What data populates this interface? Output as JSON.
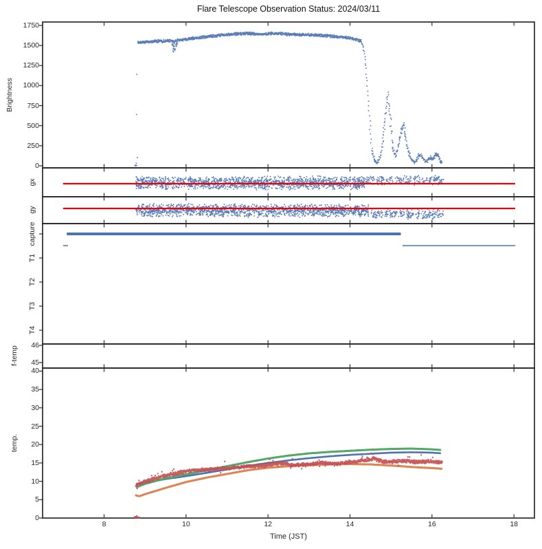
{
  "title": "Flare Telescope Observation Status: 2024/03/11",
  "x_axis": {
    "label": "Time (JST)",
    "ticks": [
      8,
      10,
      12,
      14,
      16,
      18
    ],
    "range": [
      6.5,
      18.5
    ]
  },
  "colors": {
    "scatter_blue": "#4c72b0",
    "reference_red": "#e8000b",
    "temp_red": "#c44e52",
    "temp_green": "#55a868",
    "temp_orange": "#dd8452",
    "frame": "#1c1c1c",
    "background": "#ffffff"
  },
  "chart_data": [
    {
      "id": "brightness",
      "type": "scatter",
      "ylabel": "Brightness",
      "yticks": [
        0,
        250,
        500,
        750,
        1000,
        1250,
        1500,
        1750
      ],
      "ylim": [
        -26,
        1793
      ],
      "series": [
        {
          "name": "brightness",
          "color": "#4c72b0",
          "t_range": [
            8.76,
            16.25
          ],
          "startup_points": [
            [
              8.76,
              2
            ],
            [
              8.77,
              4
            ],
            [
              8.78,
              8
            ],
            [
              8.78,
              1
            ],
            [
              8.79,
              3
            ],
            [
              8.79,
              32
            ],
            [
              8.8,
              102
            ],
            [
              8.8,
              640
            ],
            [
              8.81,
              1140
            ],
            [
              8.81,
              1530
            ]
          ],
          "plateau_keypoints": [
            [
              8.82,
              1537
            ],
            [
              9.0,
              1546
            ],
            [
              9.2,
              1551
            ],
            [
              9.4,
              1556
            ],
            [
              9.6,
              1561
            ],
            [
              9.68,
              1558
            ],
            [
              9.71,
              1535
            ],
            [
              9.74,
              1552
            ],
            [
              9.8,
              1564
            ],
            [
              10.0,
              1578
            ],
            [
              10.2,
              1592
            ],
            [
              10.4,
              1604
            ],
            [
              10.6,
              1615
            ],
            [
              10.8,
              1625
            ],
            [
              11.0,
              1634
            ],
            [
              11.2,
              1642
            ],
            [
              11.35,
              1648
            ],
            [
              11.5,
              1651
            ],
            [
              11.65,
              1646
            ],
            [
              11.8,
              1642
            ],
            [
              12.0,
              1646
            ],
            [
              12.15,
              1650
            ],
            [
              12.3,
              1648
            ],
            [
              12.45,
              1640
            ],
            [
              12.6,
              1638
            ],
            [
              12.8,
              1634
            ],
            [
              13.0,
              1632
            ],
            [
              13.2,
              1628
            ],
            [
              13.4,
              1623
            ],
            [
              13.6,
              1614
            ],
            [
              13.8,
              1605
            ],
            [
              13.95,
              1596
            ],
            [
              14.1,
              1582
            ],
            [
              14.2,
              1568
            ],
            [
              14.27,
              1552
            ]
          ],
          "dip_points": [
            [
              9.66,
              1520
            ],
            [
              9.68,
              1495
            ],
            [
              9.7,
              1462
            ],
            [
              9.71,
              1428
            ],
            [
              9.72,
              1452
            ],
            [
              9.73,
              1487
            ],
            [
              9.75,
              1508
            ],
            [
              9.77,
              1522
            ]
          ],
          "fall_keypoints": [
            [
              14.28,
              1540
            ],
            [
              14.31,
              1515
            ],
            [
              14.33,
              1465
            ],
            [
              14.35,
              1395
            ],
            [
              14.37,
              1310
            ],
            [
              14.39,
              1210
            ],
            [
              14.41,
              1090
            ],
            [
              14.43,
              950
            ],
            [
              14.45,
              800
            ],
            [
              14.47,
              640
            ],
            [
              14.49,
              480
            ],
            [
              14.51,
              330
            ],
            [
              14.53,
              215
            ],
            [
              14.56,
              130
            ],
            [
              14.6,
              75
            ]
          ],
          "tail_keypoints": [
            [
              14.6,
              70
            ],
            [
              14.65,
              40
            ],
            [
              14.7,
              55
            ],
            [
              14.75,
              130
            ],
            [
              14.8,
              330
            ],
            [
              14.85,
              560
            ],
            [
              14.9,
              780
            ],
            [
              14.93,
              880
            ],
            [
              14.96,
              740
            ],
            [
              15.0,
              500
            ],
            [
              15.03,
              320
            ],
            [
              15.06,
              200
            ],
            [
              15.1,
              130
            ],
            [
              15.15,
              170
            ],
            [
              15.2,
              300
            ],
            [
              15.26,
              440
            ],
            [
              15.3,
              505
            ],
            [
              15.34,
              415
            ],
            [
              15.38,
              290
            ],
            [
              15.42,
              190
            ],
            [
              15.46,
              120
            ],
            [
              15.5,
              75
            ],
            [
              15.56,
              48
            ],
            [
              15.62,
              70
            ],
            [
              15.68,
              130
            ],
            [
              15.72,
              150
            ],
            [
              15.78,
              85
            ],
            [
              15.84,
              45
            ],
            [
              15.9,
              65
            ],
            [
              15.96,
              105
            ],
            [
              16.0,
              75
            ],
            [
              16.05,
              95
            ],
            [
              16.1,
              165
            ],
            [
              16.15,
              125
            ],
            [
              16.2,
              65
            ],
            [
              16.25,
              35
            ]
          ]
        }
      ]
    },
    {
      "id": "gx",
      "type": "scatter",
      "label": "gx",
      "series": [
        {
          "name": "gx-scatter",
          "color": "#4c72b0",
          "dense_range": [
            8.77,
            14.35
          ],
          "sparse_segments": [
            [
              14.38,
              14.6
            ],
            [
              14.65,
              15.05
            ],
            [
              15.1,
              15.5
            ],
            [
              15.55,
              16.28
            ]
          ]
        },
        {
          "name": "gx-ref-line",
          "type": "hline",
          "color": "#e8000b",
          "span": [
            7.0,
            18.03
          ]
        }
      ]
    },
    {
      "id": "gy",
      "type": "scatter",
      "label": "gy",
      "series": [
        {
          "name": "gy-scatter",
          "color": "#4c72b0",
          "dense_range": [
            8.77,
            14.45
          ],
          "sparse_segments": [
            [
              14.5,
              14.8
            ],
            [
              14.85,
              15.55
            ],
            [
              15.6,
              16.28
            ]
          ]
        },
        {
          "name": "gy-ref-line",
          "type": "hline",
          "color": "#e8000b",
          "span": [
            7.0,
            18.03
          ]
        }
      ]
    },
    {
      "id": "capture",
      "type": "timeline",
      "categories": [
        "capture",
        "T1",
        "T2",
        "T3",
        "T4"
      ],
      "series": [
        {
          "name": "capture-on",
          "color": "#4c72b0",
          "style": "thick",
          "spans": [
            [
              7.09,
              15.24
            ]
          ]
        },
        {
          "name": "capture-off",
          "color": "#4c72b0",
          "style": "thin",
          "spans": [
            [
              7.0,
              7.12
            ],
            [
              15.28,
              18.03
            ]
          ]
        }
      ]
    },
    {
      "id": "f-temp",
      "type": "empty",
      "ylabel": "f-temp",
      "yticks": [
        45,
        46
      ],
      "series": []
    },
    {
      "id": "temp",
      "type": "line+scatter",
      "ylabel": "temp.",
      "yticks": [
        0,
        5,
        10,
        15,
        20,
        25,
        30,
        35,
        40
      ],
      "ylim": [
        -0.4,
        40.8
      ],
      "series": [
        {
          "name": "temp-sensor-red",
          "type": "scatter",
          "color": "#c44e52",
          "keypoints": [
            [
              8.8,
              9.0
            ],
            [
              9.0,
              10.0
            ],
            [
              9.5,
              11.6
            ],
            [
              10.0,
              12.7
            ],
            [
              10.5,
              13.2
            ],
            [
              11.0,
              13.6
            ],
            [
              11.5,
              14.0
            ],
            [
              12.0,
              14.4
            ],
            [
              12.3,
              15.0
            ],
            [
              12.6,
              14.4
            ],
            [
              13.0,
              14.6
            ],
            [
              13.3,
              15.1
            ],
            [
              13.6,
              14.7
            ],
            [
              14.0,
              15.2
            ],
            [
              14.3,
              15.6
            ],
            [
              14.6,
              16.2
            ],
            [
              14.8,
              15.4
            ],
            [
              15.0,
              15.3
            ],
            [
              15.3,
              15.6
            ],
            [
              15.6,
              15.3
            ],
            [
              16.0,
              15.4
            ],
            [
              16.25,
              15.1
            ]
          ],
          "zero_points": [
            [
              8.76,
              0.3
            ],
            [
              8.78,
              0.1
            ],
            [
              8.8,
              0.4
            ],
            [
              8.83,
              0.2
            ],
            [
              8.86,
              0.1
            ]
          ]
        },
        {
          "name": "temp-model-green",
          "type": "line",
          "color": "#55a868",
          "keypoints": [
            [
              8.8,
              8.4
            ],
            [
              9.0,
              9.3
            ],
            [
              9.5,
              10.8
            ],
            [
              10.0,
              11.9
            ],
            [
              10.5,
              13.0
            ],
            [
              11.0,
              14.1
            ],
            [
              11.5,
              15.2
            ],
            [
              12.0,
              16.2
            ],
            [
              12.5,
              17.0
            ],
            [
              13.0,
              17.6
            ],
            [
              13.5,
              18.0
            ],
            [
              14.0,
              18.3
            ],
            [
              14.5,
              18.6
            ],
            [
              15.0,
              18.8
            ],
            [
              15.5,
              18.9
            ],
            [
              16.0,
              18.7
            ],
            [
              16.25,
              18.5
            ]
          ]
        },
        {
          "name": "temp-model-blue",
          "type": "line",
          "color": "#4c72b0",
          "keypoints": [
            [
              8.8,
              9.2
            ],
            [
              9.0,
              9.6
            ],
            [
              9.5,
              10.6
            ],
            [
              10.0,
              11.4
            ],
            [
              10.5,
              12.3
            ],
            [
              11.0,
              13.2
            ],
            [
              11.5,
              14.2
            ],
            [
              12.0,
              15.0
            ],
            [
              12.5,
              15.7
            ],
            [
              13.0,
              16.3
            ],
            [
              13.5,
              16.8
            ],
            [
              14.0,
              17.2
            ],
            [
              14.5,
              17.5
            ],
            [
              15.0,
              17.8
            ],
            [
              15.5,
              17.9
            ],
            [
              16.0,
              17.8
            ],
            [
              16.25,
              17.6
            ]
          ]
        },
        {
          "name": "temp-model-orange",
          "type": "line",
          "color": "#dd8452",
          "keypoints": [
            [
              8.78,
              6.2
            ],
            [
              8.85,
              5.9
            ],
            [
              9.0,
              6.5
            ],
            [
              9.5,
              8.2
            ],
            [
              10.0,
              9.8
            ],
            [
              10.5,
              11.0
            ],
            [
              11.0,
              12.0
            ],
            [
              11.5,
              13.0
            ],
            [
              12.0,
              13.7
            ],
            [
              12.5,
              14.1
            ],
            [
              13.0,
              14.4
            ],
            [
              13.5,
              14.6
            ],
            [
              14.0,
              14.7
            ],
            [
              14.5,
              14.6
            ],
            [
              15.0,
              14.3
            ],
            [
              15.5,
              13.9
            ],
            [
              16.0,
              13.6
            ],
            [
              16.25,
              13.4
            ]
          ]
        }
      ]
    }
  ]
}
